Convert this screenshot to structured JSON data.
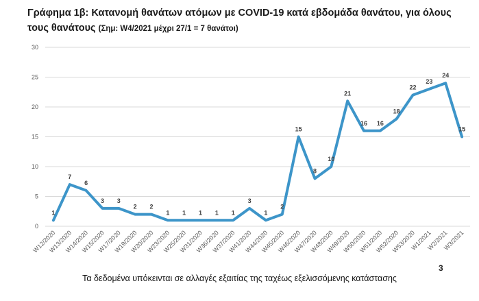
{
  "title": "Γράφημα 1β: Κατανομή θανάτων ατόμων με COVID-19 κατά εβδομάδα θανάτου, για όλους τους θανάτους",
  "title_note": "(Σημ: W4/2021 μέχρι 27/1 = 7 θανάτοι)",
  "footer": "Τα δεδομένα υπόκεινται σε αλλαγές εξαιτίας της ταχέως εξελισσόμενης κατάστασης",
  "page_number": "3",
  "chart_data": {
    "type": "line",
    "title": "Γράφημα 1β: Κατανομή θανάτων ατόμων με COVID-19 κατά εβδομάδα θανάτου, για όλους τους θανάτους",
    "xlabel": "",
    "ylabel": "",
    "ylim": [
      0,
      30
    ],
    "yticks": [
      0,
      5,
      10,
      15,
      20,
      25,
      30
    ],
    "grid": true,
    "legend": "none",
    "line_color": "#3d95c9",
    "categories": [
      "W12/2020",
      "W13/2020",
      "W14/2020",
      "W15/2020",
      "W17/2020",
      "W19/2020",
      "W20/2020",
      "W23/2020",
      "W25/2020",
      "W31/2020",
      "W36/2020",
      "W37/2020",
      "W41/2020",
      "W44/2020",
      "W45/2020",
      "W46/2020",
      "W47/2020",
      "W48/2020",
      "W49/2020",
      "W50/2020",
      "W51/2020",
      "W52/2020",
      "W53/2020",
      "W1/2021",
      "W2/2021",
      "W3/2021"
    ],
    "values": [
      1,
      7,
      6,
      3,
      3,
      2,
      2,
      1,
      1,
      1,
      1,
      1,
      3,
      1,
      2,
      15,
      8,
      10,
      21,
      16,
      16,
      18,
      22,
      23,
      24,
      15
    ]
  }
}
